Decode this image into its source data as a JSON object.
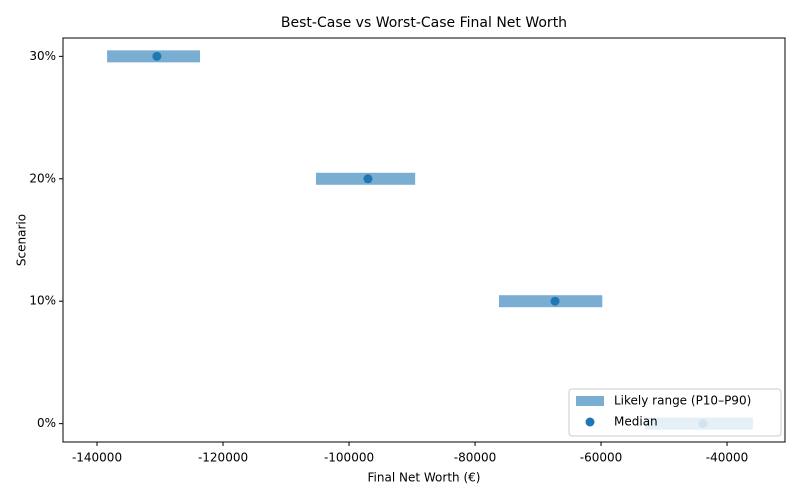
{
  "chart_data": {
    "type": "range",
    "title": "Best-Case vs Worst-Case Final Net Worth",
    "xlabel": "Final Net Worth (€)",
    "ylabel": "Scenario",
    "categories": [
      "0%",
      "10%",
      "20%",
      "30%"
    ],
    "series": [
      {
        "name": "Likely range (P10–P90)",
        "color": "#1f77b4",
        "opacity": 0.6,
        "low": [
          -53000,
          -76200,
          -105250,
          -138400
        ],
        "high": [
          -35900,
          -59800,
          -89500,
          -123650
        ]
      },
      {
        "name": "Median",
        "color": "#1f77b4",
        "values": [
          -43800,
          -67300,
          -97000,
          -130500
        ]
      }
    ],
    "xlim": [
      -145400,
      -30800
    ],
    "xticks": [
      -140000,
      -120000,
      -100000,
      -80000,
      -60000,
      -40000
    ],
    "legend": "lower right",
    "grid": false
  }
}
